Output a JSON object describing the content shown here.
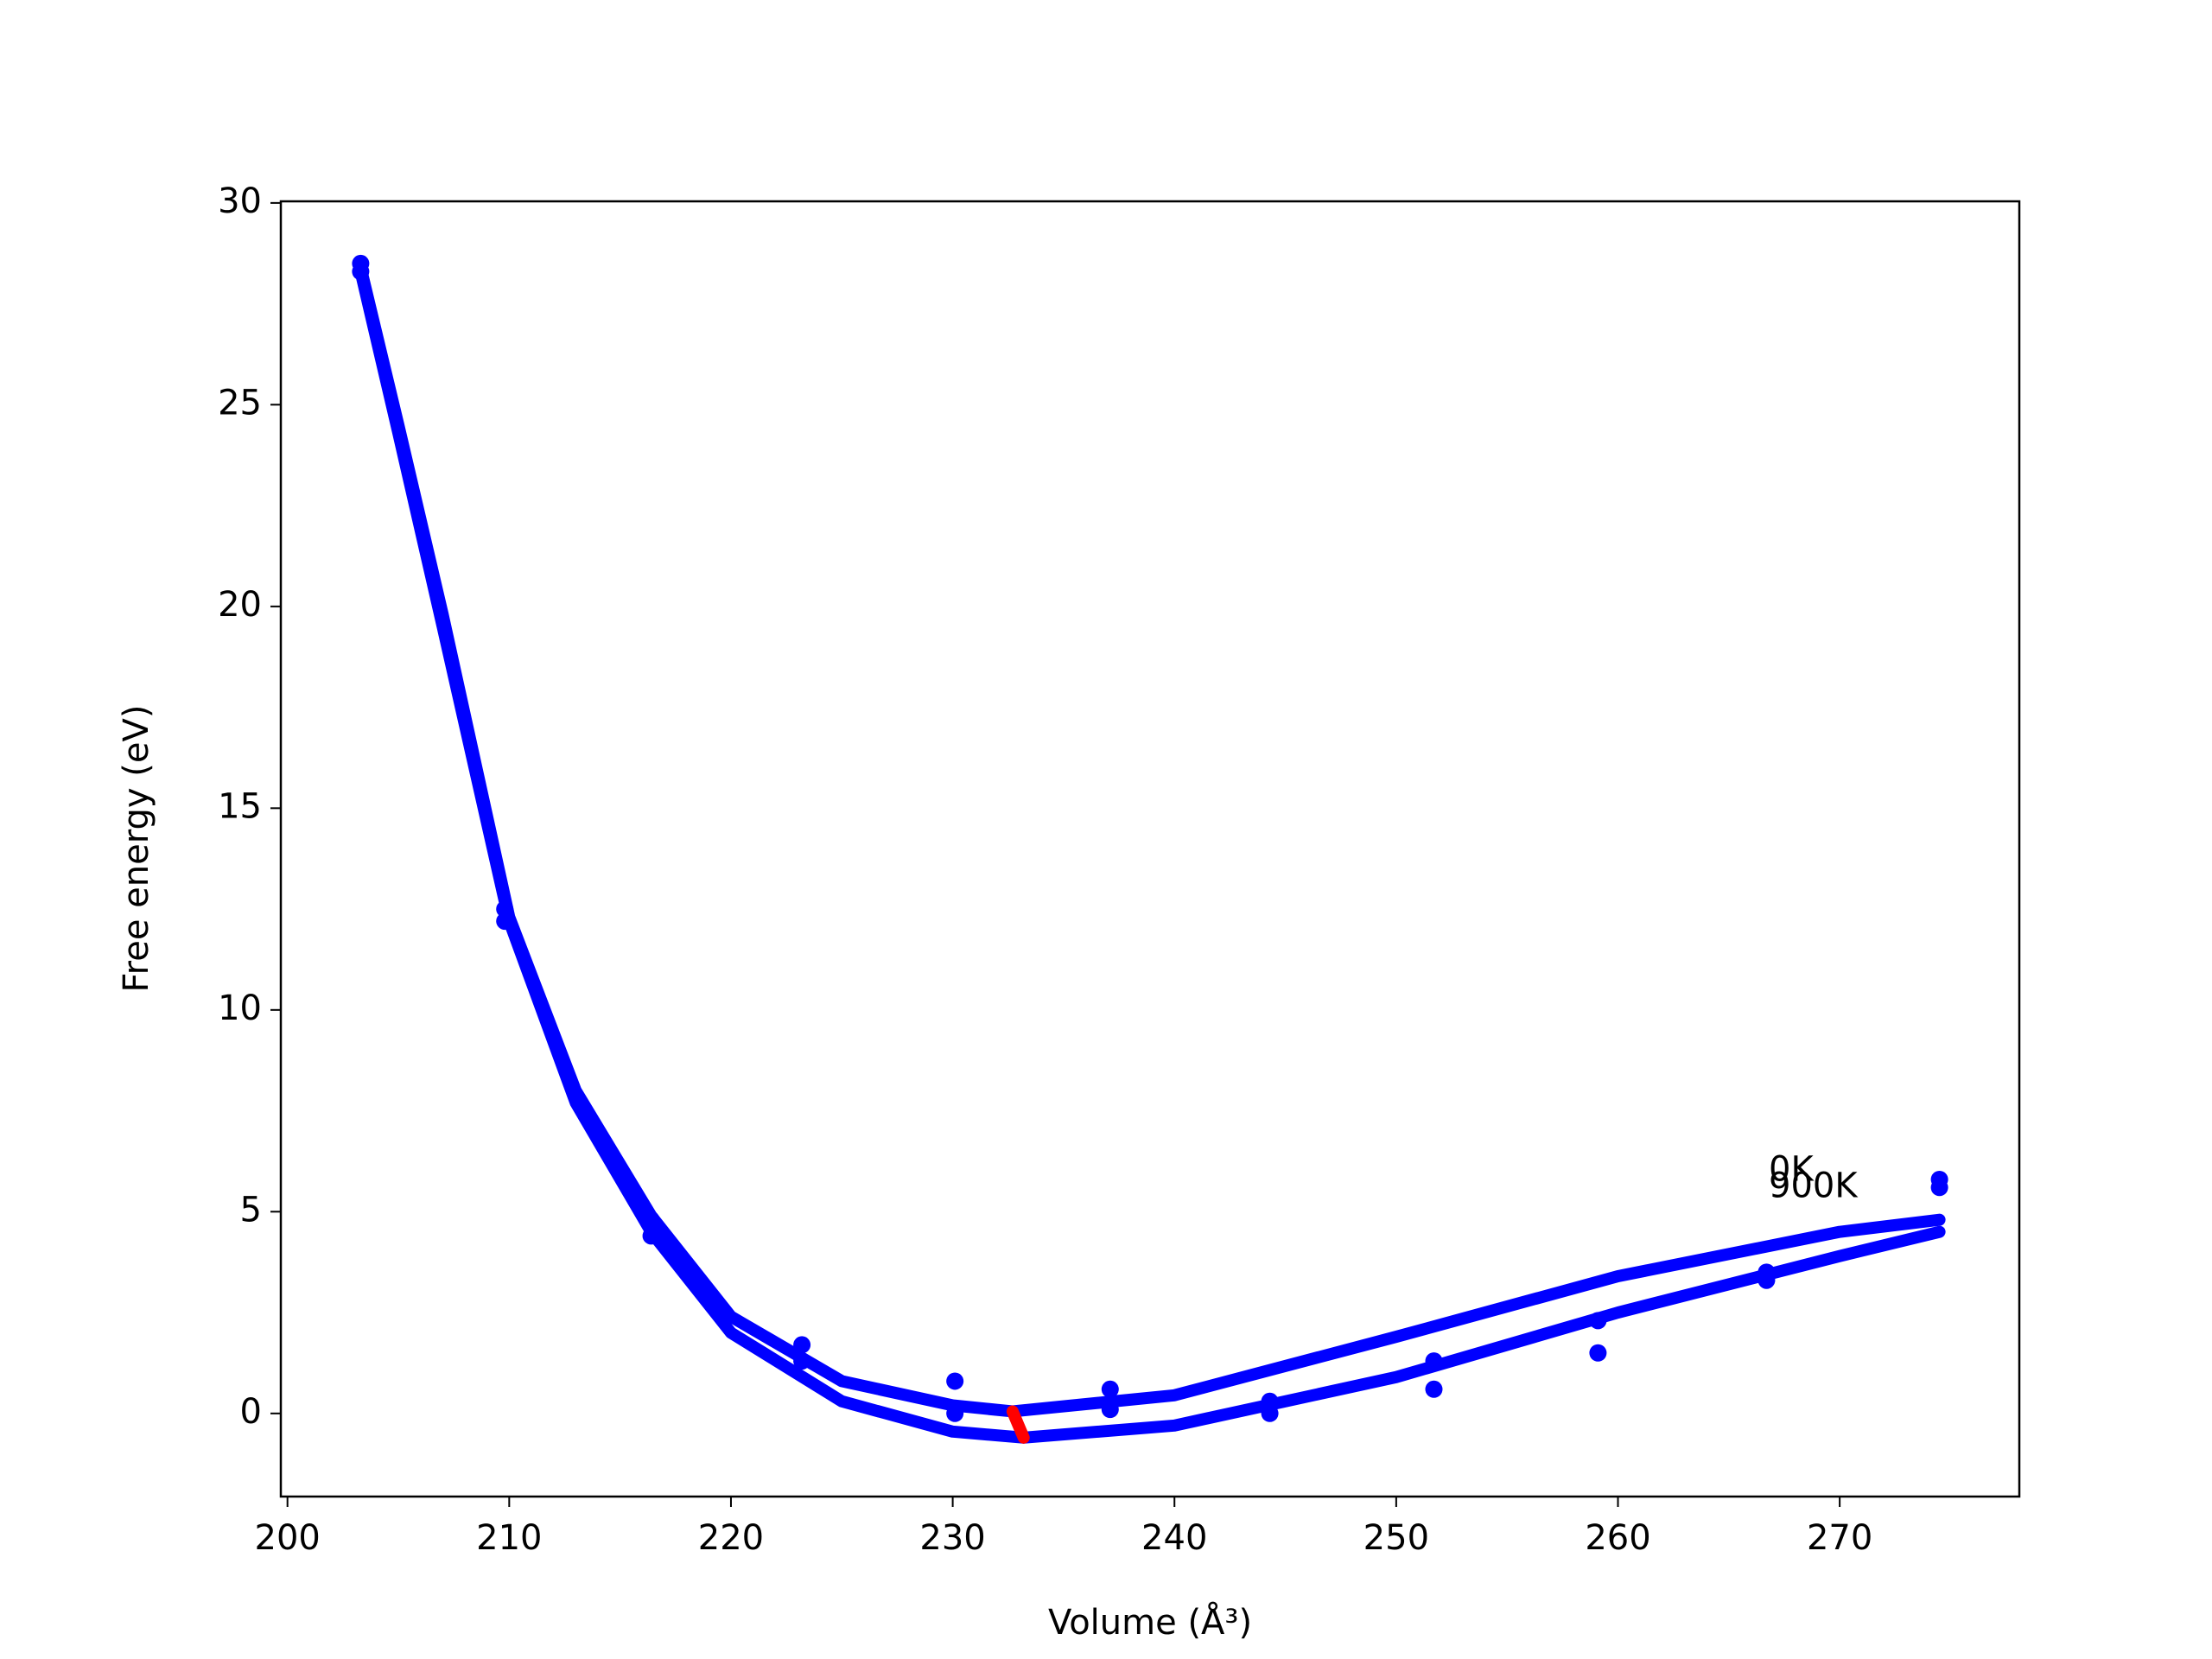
{
  "chart_data": {
    "type": "line",
    "xlabel": "Volume (Å³)",
    "ylabel": "Free energy (eV)",
    "xlim": [
      199.7,
      278.1
    ],
    "ylim": [
      -2.06,
      30.04
    ],
    "xticks": [
      200,
      210,
      220,
      230,
      240,
      250,
      260,
      270
    ],
    "yticks": [
      0,
      5,
      10,
      15,
      20,
      25,
      30
    ],
    "series": [
      {
        "style": "line",
        "color": "#0000ff",
        "x": [
          203.3,
          205,
          207,
          210,
          213,
          216.4,
          220,
          225,
          230,
          232.7,
          240,
          250,
          260,
          270,
          274.5
        ],
        "values": [
          28.4,
          24.5,
          19.8,
          12.3,
          8.0,
          4.9,
          2.4,
          0.8,
          0.2,
          0.05,
          0.45,
          1.9,
          3.4,
          4.5,
          4.8
        ]
      },
      {
        "style": "line",
        "color": "#0000ff",
        "x": [
          203.3,
          205,
          207,
          210,
          213,
          216.4,
          220,
          225,
          230,
          233.2,
          240,
          250,
          260,
          270,
          274.5
        ],
        "values": [
          28.3,
          24.3,
          19.5,
          12.2,
          7.7,
          4.5,
          2.0,
          0.3,
          -0.45,
          -0.6,
          -0.3,
          0.9,
          2.5,
          3.9,
          4.5
        ]
      },
      {
        "style": "points",
        "color": "#0000ff",
        "x": [
          203.3,
          209.8,
          216.4,
          223.2,
          230.1,
          237.1,
          244.3,
          251.7,
          259.1,
          266.7,
          274.5
        ],
        "values": [
          28.5,
          12.5,
          4.8,
          1.7,
          0.8,
          0.6,
          0.3,
          1.3,
          2.3,
          3.5,
          5.8
        ]
      },
      {
        "style": "points",
        "color": "#0000ff",
        "x": [
          203.3,
          209.8,
          216.4,
          223.2,
          230.1,
          237.1,
          244.3,
          251.7,
          259.1,
          266.7,
          274.5
        ],
        "values": [
          28.3,
          12.2,
          4.4,
          1.3,
          0.0,
          0.1,
          0.0,
          0.6,
          1.5,
          3.3,
          5.6
        ]
      },
      {
        "style": "line",
        "color": "#ff0000",
        "x": [
          232.7,
          233.2
        ],
        "values": [
          0.05,
          -0.6
        ]
      }
    ],
    "annotations": [
      {
        "text": "0K",
        "x": 266.8,
        "y": 6.0
      },
      {
        "text": "900K",
        "x": 266.8,
        "y": 5.6
      }
    ]
  }
}
